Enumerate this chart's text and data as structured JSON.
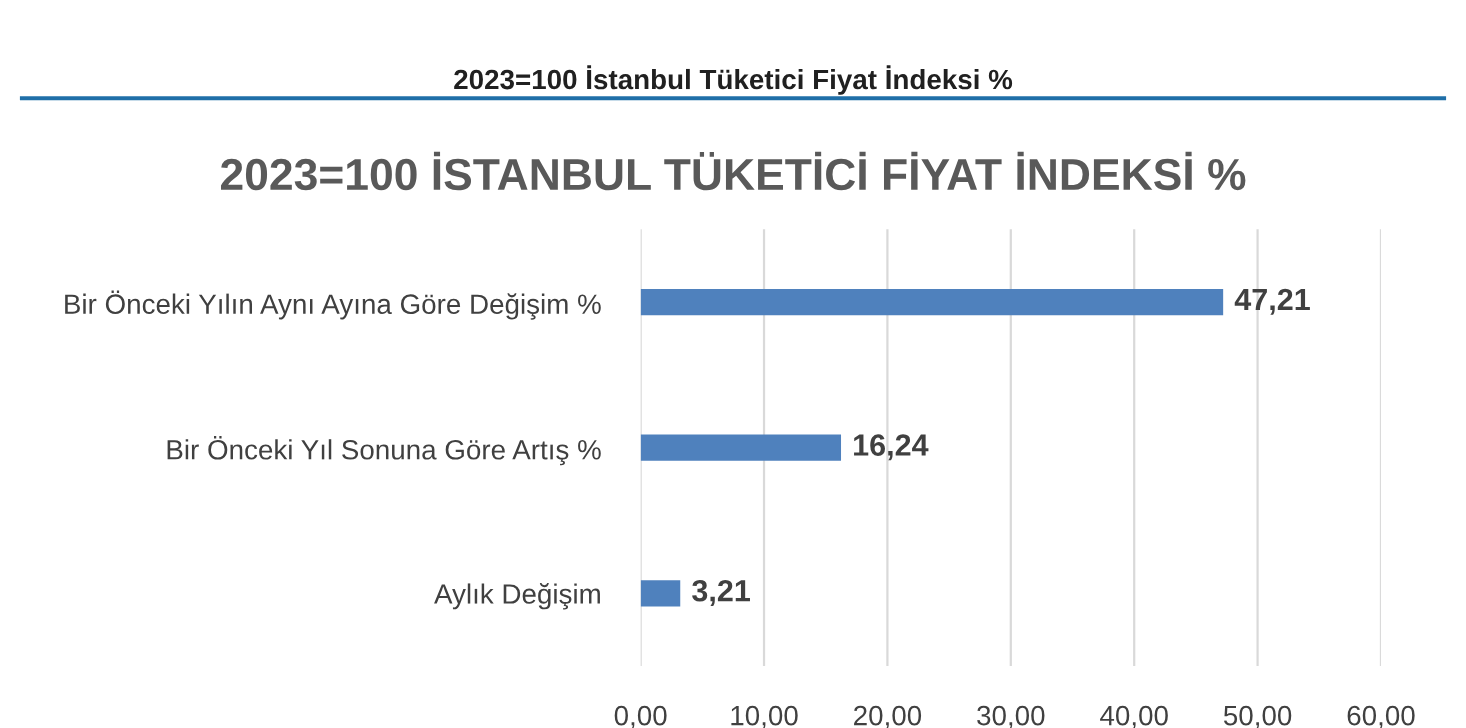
{
  "chart_data": {
    "type": "bar",
    "orientation": "horizontal",
    "title": "2023=100 İSTANBUL TÜKETİCİ FİYAT İNDEKSİ %",
    "annotations": [
      "2023=100 İstanbul Tüketici Fiyat İndeksi %"
    ],
    "categories": [
      "Bir Önceki Yılın Aynı Ayına Göre Değişim %",
      "Bir Önceki Yıl Sonuna Göre Artış %",
      "Aylık Değişim"
    ],
    "values": [
      47.21,
      16.24,
      3.21
    ],
    "value_labels": [
      "47,21",
      "16,24",
      "3,21"
    ],
    "color": "#4f81bd",
    "xlim": [
      0,
      60
    ],
    "xticks": [
      {
        "value": 0,
        "label": "0,00"
      },
      {
        "value": 10,
        "label": "10,00"
      },
      {
        "value": 20,
        "label": "20,00"
      },
      {
        "value": 30,
        "label": "30,00"
      },
      {
        "value": 40,
        "label": "40,00"
      },
      {
        "value": 50,
        "label": "50,00"
      },
      {
        "value": 60,
        "label": "60,00"
      }
    ],
    "grid": "x",
    "legend": false
  }
}
